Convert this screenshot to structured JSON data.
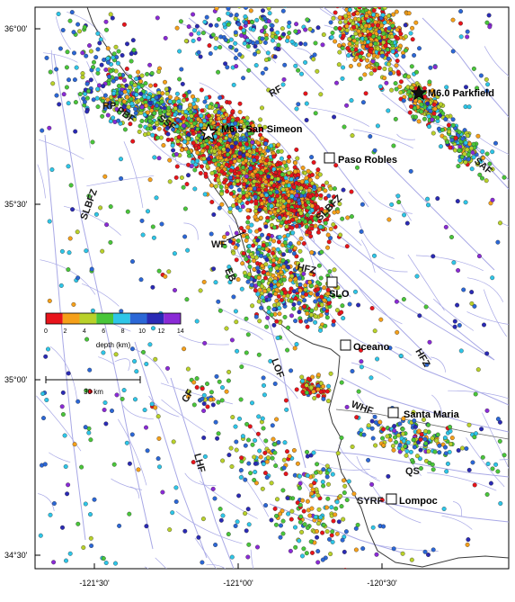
{
  "map": {
    "ticks": {
      "lat": [
        "36°00'",
        "35°30'",
        "35°00'",
        "34°30'"
      ],
      "lon": [
        "-121°30'",
        "-121°00'",
        "-120°30'"
      ]
    },
    "events": [
      {
        "id": "san-simeon",
        "label": "M6.5 San Simeon"
      },
      {
        "id": "parkfield",
        "label": "M6.0 Parkfield"
      }
    ],
    "towns": [
      {
        "id": "paso-robles",
        "label": "Paso Robles"
      },
      {
        "id": "slo",
        "label": "SLO"
      },
      {
        "id": "oceano",
        "label": "Oceano"
      },
      {
        "id": "santa-maria",
        "label": "Santa Maria"
      },
      {
        "id": "lompoc",
        "label": "Lompoc"
      }
    ],
    "fault_labels": [
      {
        "id": "rf",
        "label": "RF"
      },
      {
        "id": "rp",
        "label": "RP"
      },
      {
        "id": "pbf",
        "label": "PBF"
      },
      {
        "id": "ssf",
        "label": "SSF"
      },
      {
        "id": "saf",
        "label": "SAF"
      },
      {
        "id": "slbfz-north",
        "label": "SLBFZ"
      },
      {
        "id": "slbfz-south",
        "label": "SLBFZ"
      },
      {
        "id": "wf",
        "label": "WF"
      },
      {
        "id": "eb",
        "label": "EB"
      },
      {
        "id": "hfz-north",
        "label": "HFZ"
      },
      {
        "id": "hfz-south",
        "label": "HFZ"
      },
      {
        "id": "lof",
        "label": "LOF"
      },
      {
        "id": "whf",
        "label": "WHF"
      },
      {
        "id": "cf",
        "label": "CF"
      },
      {
        "id": "qs",
        "label": "QS"
      },
      {
        "id": "lhf",
        "label": "LHF"
      },
      {
        "id": "syrf",
        "label": "SYRF"
      }
    ],
    "colorbar": {
      "colors": [
        "#e8141b",
        "#f5a01a",
        "#b9d12a",
        "#49c63a",
        "#2ec6e8",
        "#2b67d6",
        "#2a2ab5",
        "#8a2ad6"
      ],
      "tick_labels": [
        "0",
        "2",
        "4",
        "6",
        "8",
        "10",
        "12",
        "14"
      ],
      "title": "depth (km)"
    },
    "scale_bar": {
      "label": "30 km"
    },
    "colors": {
      "fault": "#a8a8e6",
      "coast": "#3a3a3a",
      "frame": "#000000"
    }
  }
}
